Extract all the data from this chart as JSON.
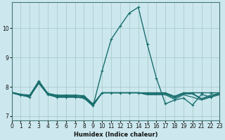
{
  "title": "",
  "xlabel": "Humidex (Indice chaleur)",
  "ylabel": "",
  "bg_color": "#cce8ee",
  "grid_color": "#aacccc",
  "line_color": "#1a6e6e",
  "xlim": [
    0,
    23
  ],
  "ylim": [
    6.85,
    10.9
  ],
  "yticks": [
    7,
    8,
    9,
    10
  ],
  "xticks": [
    0,
    1,
    2,
    3,
    4,
    5,
    6,
    7,
    8,
    9,
    10,
    11,
    12,
    13,
    14,
    15,
    16,
    17,
    18,
    19,
    20,
    21,
    22,
    23
  ],
  "series": [
    {
      "x": [
        0,
        1,
        2,
        3,
        4,
        5,
        6,
        7,
        8,
        9,
        10,
        11,
        12,
        13,
        14,
        15,
        16,
        17,
        18,
        19,
        20,
        21,
        22,
        23
      ],
      "y": [
        7.82,
        7.75,
        7.72,
        8.2,
        7.78,
        7.72,
        7.72,
        7.72,
        7.7,
        7.42,
        7.8,
        7.8,
        7.8,
        7.8,
        7.8,
        7.8,
        7.8,
        7.8,
        7.68,
        7.8,
        7.8,
        7.8,
        7.8,
        7.8
      ],
      "marker": true,
      "lw": 1.0
    },
    {
      "x": [
        0,
        1,
        2,
        3,
        4,
        5,
        6,
        7,
        8,
        9,
        10,
        11,
        12,
        13,
        14,
        15,
        16,
        17,
        18,
        19,
        20,
        21,
        22,
        23
      ],
      "y": [
        7.8,
        7.72,
        7.7,
        8.18,
        7.76,
        7.7,
        7.7,
        7.7,
        7.68,
        7.4,
        7.8,
        7.8,
        7.8,
        7.8,
        7.8,
        7.78,
        7.78,
        7.78,
        7.66,
        7.78,
        7.78,
        7.6,
        7.72,
        7.78
      ],
      "marker": false,
      "lw": 0.9
    },
    {
      "x": [
        0,
        1,
        2,
        3,
        4,
        5,
        6,
        7,
        8,
        9,
        10,
        11,
        12,
        13,
        14,
        15,
        16,
        17,
        18,
        19,
        20,
        21,
        22,
        23
      ],
      "y": [
        7.8,
        7.72,
        7.68,
        8.15,
        7.75,
        7.68,
        7.68,
        7.68,
        7.65,
        7.38,
        7.8,
        7.8,
        7.8,
        7.8,
        7.8,
        7.76,
        7.76,
        7.76,
        7.62,
        7.76,
        7.76,
        7.58,
        7.68,
        7.76
      ],
      "marker": false,
      "lw": 0.9
    },
    {
      "x": [
        0,
        1,
        2,
        3,
        4,
        5,
        6,
        7,
        8,
        9,
        10,
        11,
        12,
        13,
        14,
        15,
        16,
        17,
        18,
        19,
        20,
        21,
        22,
        23
      ],
      "y": [
        7.8,
        7.72,
        7.66,
        8.12,
        7.73,
        7.65,
        7.65,
        7.65,
        7.62,
        7.35,
        7.8,
        7.8,
        7.8,
        7.8,
        7.8,
        7.73,
        7.73,
        7.73,
        7.58,
        7.73,
        7.65,
        7.55,
        7.65,
        7.73
      ],
      "marker": false,
      "lw": 0.9
    },
    {
      "x": [
        0,
        1,
        2,
        3,
        4,
        5,
        6,
        7,
        8,
        9,
        10,
        11,
        12,
        13,
        14,
        15,
        16,
        17,
        18,
        19,
        20,
        21,
        22,
        23
      ],
      "y": [
        7.8,
        7.72,
        7.65,
        8.2,
        7.75,
        7.65,
        7.65,
        7.65,
        7.62,
        7.35,
        8.55,
        9.62,
        10.08,
        10.52,
        10.72,
        9.45,
        8.3,
        7.42,
        7.55,
        7.62,
        7.38,
        7.75,
        7.65,
        7.8
      ],
      "marker": true,
      "lw": 1.0
    }
  ]
}
